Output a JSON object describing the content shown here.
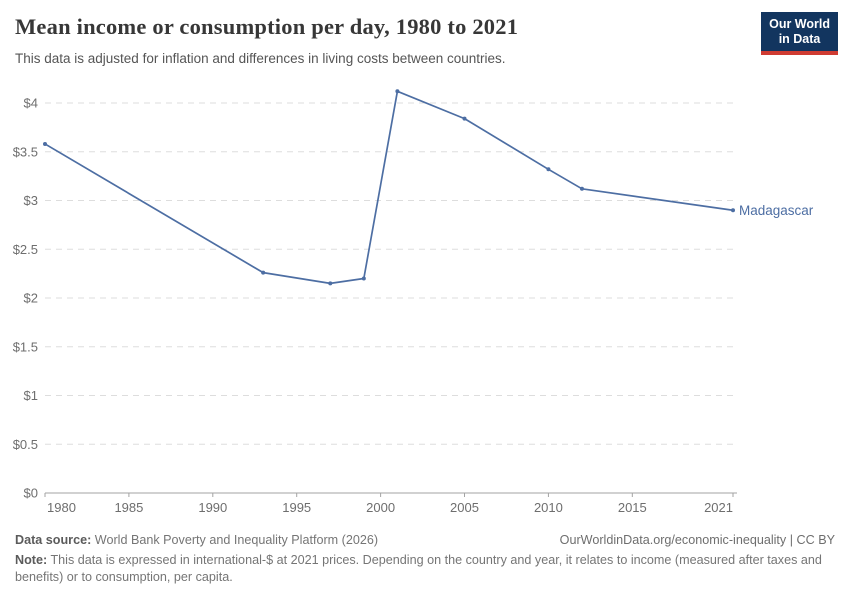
{
  "header": {
    "title": "Mean income or consumption per day, 1980 to 2021",
    "subtitle": "This data is adjusted for inflation and differences in living costs between countries.",
    "logo": {
      "line1": "Our World",
      "line2": "in Data"
    }
  },
  "colors": {
    "line": "#4d6ea3",
    "logo_bg": "#12355f",
    "logo_accent": "#cf3b32",
    "grid": "#dddddd",
    "axis": "#a3a3a3",
    "tick_label": "#6e6e6e"
  },
  "chart_data": {
    "type": "line",
    "title": "Mean income or consumption per day, 1980 to 2021",
    "xlabel": "",
    "ylabel": "",
    "xlim": [
      1980,
      2021
    ],
    "ylim": [
      0,
      4.2
    ],
    "grid": "horizontal-dashed",
    "legend_position": "end-of-line-label",
    "x_ticks": [
      1980,
      1985,
      1990,
      1995,
      2000,
      2005,
      2010,
      2015,
      2021
    ],
    "x_tick_labels": [
      "1980",
      "1985",
      "1990",
      "1995",
      "2000",
      "2005",
      "2010",
      "2015",
      "2021"
    ],
    "y_ticks": [
      0,
      0.5,
      1,
      1.5,
      2,
      2.5,
      3,
      3.5,
      4
    ],
    "y_tick_labels": [
      "$0",
      "$0.5",
      "$1",
      "$1.5",
      "$2",
      "$2.5",
      "$3",
      "$3.5",
      "$4"
    ],
    "series": [
      {
        "name": "Madagascar",
        "color": "#4d6ea3",
        "x": [
          1980,
          1993,
          1997,
          1999,
          2001,
          2005,
          2010,
          2012,
          2021
        ],
        "values": [
          3.58,
          2.26,
          2.15,
          2.2,
          4.12,
          3.84,
          3.32,
          3.12,
          2.9
        ]
      }
    ]
  },
  "footer": {
    "source_label": "Data source:",
    "source_text": " World Bank Poverty and Inequality Platform (2026)",
    "attribution": "OurWorldinData.org/economic-inequality | CC BY",
    "note_label": "Note:",
    "note_text": " This data is expressed in international-$ at 2021 prices. Depending on the country and year, it relates to income (measured after taxes and benefits) or to consumption, per capita."
  }
}
